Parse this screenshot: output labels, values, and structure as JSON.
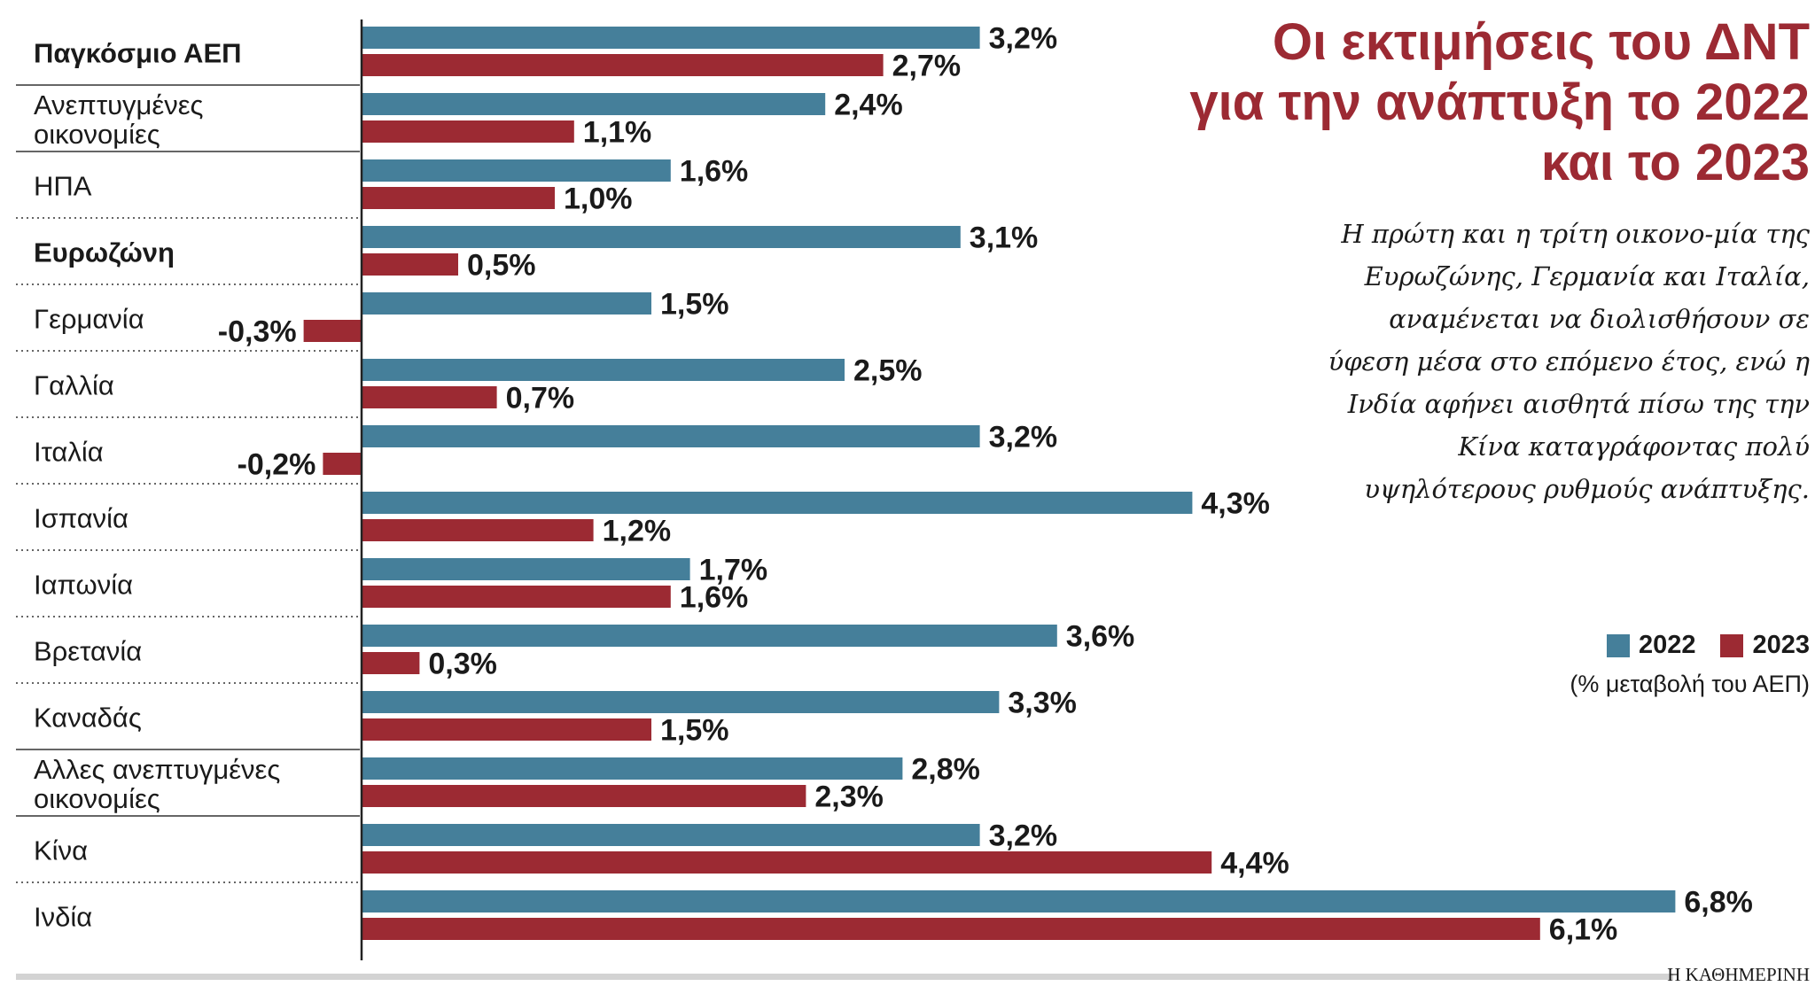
{
  "title": "Οι εκτιμήσεις του ΔΝΤ για την ανάπτυξη το 2022 και το 2023",
  "subtitle": "Η πρώτη και η τρίτη οικονο-μία της Ευρωζώνης, Γερμανία και Ιταλία, αναμένεται να διολισθήσουν σε ύφεση μέσα στο επόμενο έτος, ενώ η Ινδία αφήνει αισθητά πίσω της την Κίνα καταγράφοντας πολύ υψηλότερους ρυθμούς ανάπτυξης.",
  "legend": {
    "items": [
      {
        "label": "2022",
        "color": "#457f9a"
      },
      {
        "label": "2023",
        "color": "#9c2a33"
      }
    ],
    "unit": "(% μεταβολή του ΑΕΠ)"
  },
  "source": "Η ΚΑΘΗΜΕΡΙΝΗ",
  "chart_data": {
    "type": "bar",
    "orientation": "horizontal",
    "title": "Οι εκτιμήσεις του ΔΝΤ για την ανάπτυξη το 2022 και το 2023",
    "categories": [
      {
        "lines": [
          "Παγκόσμιο ΑΕΠ"
        ],
        "bold": true
      },
      {
        "lines": [
          "Ανεπτυγμένες",
          "οικονομίες"
        ],
        "bold": false
      },
      {
        "lines": [
          "ΗΠΑ"
        ],
        "bold": false
      },
      {
        "lines": [
          "Ευρωζώνη"
        ],
        "bold": true
      },
      {
        "lines": [
          "Γερμανία"
        ],
        "bold": false
      },
      {
        "lines": [
          "Γαλλία"
        ],
        "bold": false
      },
      {
        "lines": [
          "Ιταλία"
        ],
        "bold": false
      },
      {
        "lines": [
          "Ισπανία"
        ],
        "bold": false
      },
      {
        "lines": [
          "Ιαπωνία"
        ],
        "bold": false
      },
      {
        "lines": [
          "Βρετανία"
        ],
        "bold": false
      },
      {
        "lines": [
          "Καναδάς"
        ],
        "bold": false
      },
      {
        "lines": [
          "Αλλες ανεπτυγμένες",
          "οικονομίες"
        ],
        "bold": false
      },
      {
        "lines": [
          "Κίνα"
        ],
        "bold": false
      },
      {
        "lines": [
          "Ινδία"
        ],
        "bold": false
      }
    ],
    "separators": [
      "solid",
      "solid",
      "dotted",
      "dotted",
      "dotted",
      "dotted",
      "dotted",
      "dotted",
      "dotted",
      "dotted",
      "solid",
      "solid",
      "dotted"
    ],
    "series": [
      {
        "name": "2022",
        "color": "#457f9a",
        "values": [
          3.2,
          2.4,
          1.6,
          3.1,
          1.5,
          2.5,
          3.2,
          4.3,
          1.7,
          3.6,
          3.3,
          2.8,
          3.2,
          6.8
        ],
        "labels": [
          "3,2%",
          "2,4%",
          "1,6%",
          "3,1%",
          "1,5%",
          "2,5%",
          "3,2%",
          "4,3%",
          "1,7%",
          "3,6%",
          "3,3%",
          "2,8%",
          "3,2%",
          "6,8%"
        ]
      },
      {
        "name": "2023",
        "color": "#9c2a33",
        "values": [
          2.7,
          1.1,
          1.0,
          0.5,
          -0.3,
          0.7,
          -0.2,
          1.2,
          1.6,
          0.3,
          1.5,
          2.3,
          4.4,
          6.1
        ],
        "labels": [
          "2,7%",
          "1,1%",
          "1,0%",
          "0,5%",
          "-0,3%",
          "0,7%",
          "-0,2%",
          "1,2%",
          "1,6%",
          "0,3%",
          "1,5%",
          "2,3%",
          "4,4%",
          "6,1%"
        ]
      }
    ],
    "xlabel": "",
    "ylabel": "% μεταβολή του ΑΕΠ",
    "xlim": [
      -0.3,
      6.8
    ],
    "grid": false,
    "legend_position": "right"
  }
}
